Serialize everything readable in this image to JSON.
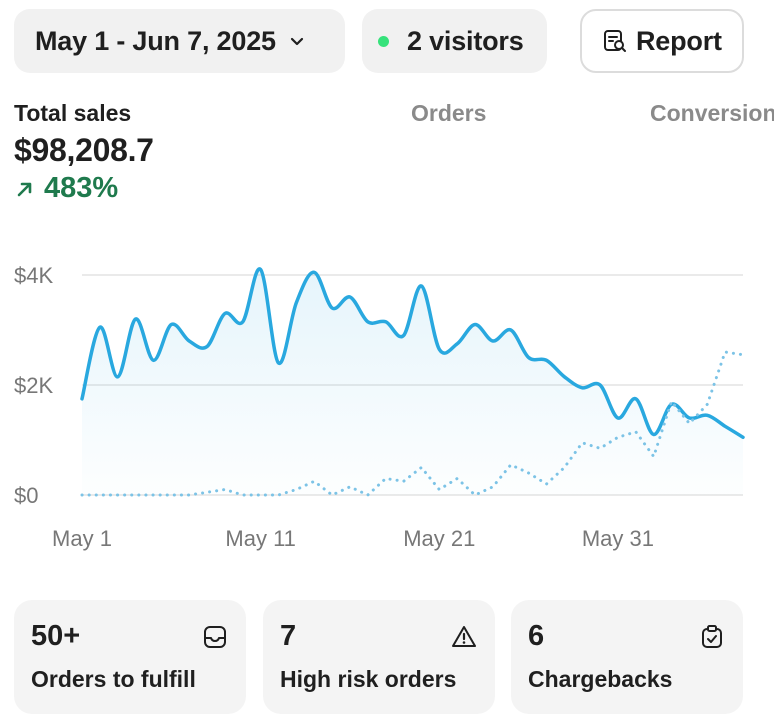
{
  "toolbar": {
    "date_range": "May 1 - Jun 7, 2025",
    "visitors": "2 visitors",
    "report_label": "Report",
    "icons": {
      "date": "chevron-down-icon",
      "visitors": "live-dot-icon",
      "report": "report-search-icon"
    }
  },
  "metrics": {
    "tabs": [
      "Total sales",
      "Orders",
      "Conversion"
    ],
    "total_sales_value": "$98,208.7",
    "total_sales_change": "483%",
    "change_direction": "up",
    "change_color": "#1f7a4d"
  },
  "chart_data": {
    "type": "line",
    "ylim": [
      0,
      4000
    ],
    "y_ticks": [
      "$0",
      "$2K",
      "$4K"
    ],
    "y_tick_values": [
      0,
      2000,
      4000
    ],
    "x_tick_labels": [
      "May 1",
      "May 11",
      "May 21",
      "May 31"
    ],
    "x_tick_days": [
      0,
      10,
      20,
      30
    ],
    "x_range_days": [
      0,
      37
    ],
    "grid": true,
    "series": [
      {
        "style": "solid",
        "color": "#29a8df",
        "values": [
          1750,
          3050,
          2150,
          3200,
          2450,
          3100,
          2800,
          2700,
          3300,
          3150,
          4100,
          2400,
          3500,
          4050,
          3400,
          3600,
          3150,
          3150,
          2900,
          3800,
          2650,
          2750,
          3100,
          2800,
          3000,
          2500,
          2450,
          2150,
          1950,
          2000,
          1400,
          1750,
          1100,
          1650,
          1400,
          1450,
          1250,
          1050
        ]
      },
      {
        "style": "dotted",
        "color": "#7cc3e6",
        "values": [
          0,
          0,
          0,
          0,
          0,
          0,
          0,
          50,
          100,
          0,
          0,
          0,
          100,
          250,
          0,
          150,
          0,
          300,
          250,
          500,
          100,
          300,
          0,
          150,
          550,
          400,
          200,
          500,
          950,
          850,
          1050,
          1150,
          700,
          1700,
          1300,
          1650,
          2600,
          2550
        ]
      }
    ]
  },
  "cards": [
    {
      "value": "50+",
      "label": "Orders to fulfill",
      "icon": "inbox-icon"
    },
    {
      "value": "7",
      "label": "High risk orders",
      "icon": "warning-icon"
    },
    {
      "value": "6",
      "label": "Chargebacks",
      "icon": "clipboard-check-icon"
    }
  ]
}
